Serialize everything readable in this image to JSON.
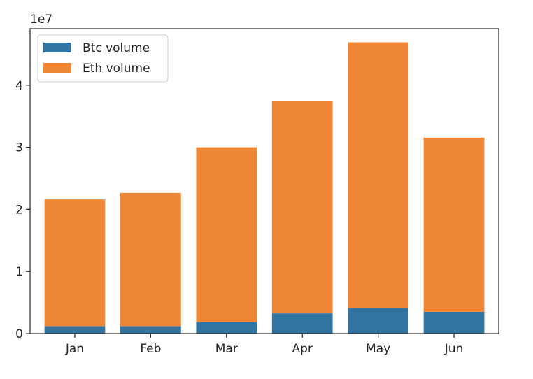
{
  "chart_data": {
    "type": "bar",
    "stacked": true,
    "categories": [
      "Jan",
      "Feb",
      "Mar",
      "Apr",
      "May",
      "Jun"
    ],
    "series": [
      {
        "name": "Btc volume",
        "color": "#3274a1",
        "values": [
          1200000,
          1200000,
          1850000,
          3250000,
          4150000,
          3500000
        ]
      },
      {
        "name": "Eth volume",
        "color": "#ef8636",
        "values": [
          20400000,
          21450000,
          28150000,
          34250000,
          42750000,
          28050000
        ]
      }
    ],
    "y_offset_label": "1e7",
    "yticks": [
      0,
      1,
      2,
      3,
      4
    ],
    "ytick_scale": 10000000,
    "ylim": [
      0,
      49100000
    ],
    "legend_position": "upper-left",
    "grid": false
  }
}
